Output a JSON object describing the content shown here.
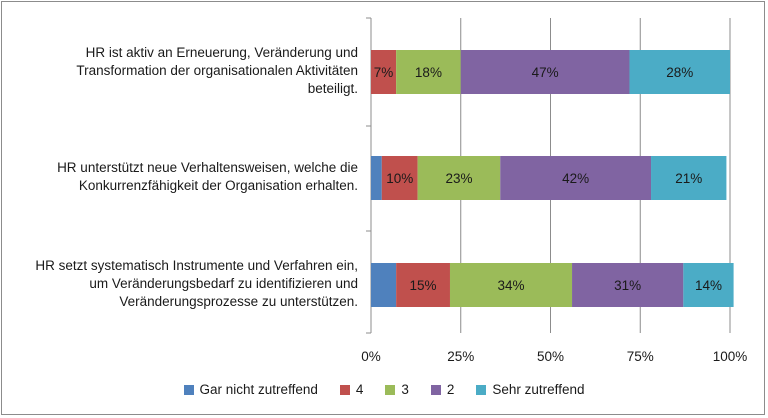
{
  "chart_data": {
    "type": "bar",
    "orientation": "horizontal",
    "stacked": "percent",
    "categories": [
      "HR ist aktiv an Erneuerung, Veränderung und\nTransformation der organisationalen Aktivitäten\nbeteiligt.",
      "HR unterstützt neue Verhaltensweisen, welche die\nKonkurrenzfähigkeit der Organisation erhalten.",
      "HR setzt systematisch Instrumente und Verfahren ein,\num Veränderungsbedarf zu identifizieren und\nVeränderungsprozesse zu unterstützen."
    ],
    "series": [
      {
        "name": "Gar nicht zutreffend",
        "color": "#4f81bd",
        "values": [
          0,
          3,
          7
        ],
        "labels": [
          "",
          "",
          ""
        ]
      },
      {
        "name": "4",
        "color": "#c0504d",
        "values": [
          7,
          10,
          15
        ],
        "labels": [
          "7%",
          "10%",
          "15%"
        ]
      },
      {
        "name": "3",
        "color": "#9bbb59",
        "values": [
          18,
          23,
          34
        ],
        "labels": [
          "18%",
          "23%",
          "34%"
        ]
      },
      {
        "name": "2",
        "color": "#8064a2",
        "values": [
          47,
          42,
          31
        ],
        "labels": [
          "47%",
          "42%",
          "31%"
        ]
      },
      {
        "name": "Sehr zutreffend",
        "color": "#4bacc6",
        "values": [
          28,
          21,
          14
        ],
        "labels": [
          "28%",
          "21%",
          "14%"
        ]
      }
    ],
    "x_ticks": [
      "0%",
      "25%",
      "50%",
      "75%",
      "100%"
    ],
    "xlim": [
      0,
      100
    ],
    "grid": "vertical",
    "legend_position": "bottom"
  }
}
